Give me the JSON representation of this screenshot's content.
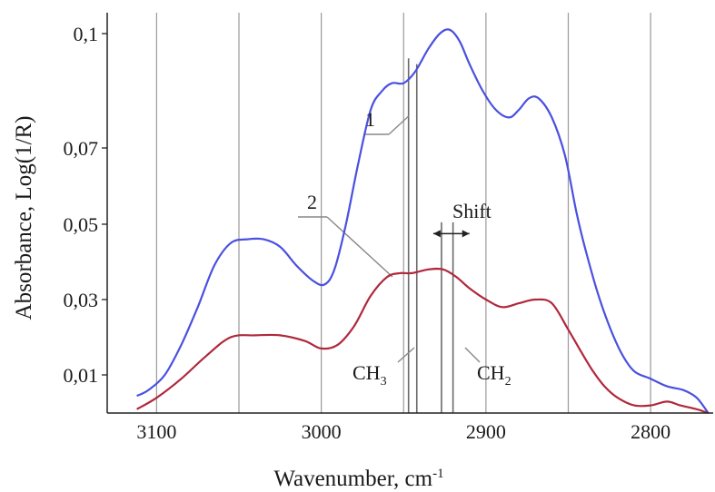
{
  "chart_data": {
    "type": "line",
    "title": "",
    "xlabel": "Wavenumber, cm",
    "xlabel_superscript": "-1",
    "ylabel": "Absorbance, Log(1/R)",
    "x_reversed": true,
    "xlim": [
      3130,
      2762
    ],
    "ylim": [
      0.0,
      0.105
    ],
    "x_ticks": [
      3100,
      3000,
      2900,
      2800
    ],
    "y_ticks": [
      0.01,
      0.03,
      0.05,
      0.07,
      0.1
    ],
    "y_tick_labels": [
      "0,01",
      "0,03",
      "0,05",
      "0,07",
      "0,1"
    ],
    "x_gridlines": [
      3100,
      3050,
      3000,
      2950,
      2900,
      2850,
      2800
    ],
    "grid": "vertical lines only",
    "colors": {
      "series1": "#4a50e0",
      "series2": "#b0283c",
      "grid": "#9a9a9a",
      "axis": "#222222",
      "annotation": "#888888"
    },
    "series": [
      {
        "name": "1",
        "x": [
          3112,
          3105,
          3095,
          3085,
          3075,
          3065,
          3055,
          3045,
          3035,
          3025,
          3015,
          3005,
          2998,
          2992,
          2985,
          2978,
          2970,
          2963,
          2957,
          2950,
          2943,
          2935,
          2928,
          2922,
          2916,
          2910,
          2902,
          2894,
          2886,
          2880,
          2874,
          2868,
          2860,
          2852,
          2845,
          2840,
          2833,
          2826,
          2818,
          2810,
          2800,
          2790,
          2780,
          2772,
          2765
        ],
        "y": [
          0.0045,
          0.006,
          0.01,
          0.018,
          0.028,
          0.039,
          0.045,
          0.046,
          0.046,
          0.044,
          0.039,
          0.035,
          0.034,
          0.038,
          0.05,
          0.065,
          0.08,
          0.085,
          0.087,
          0.087,
          0.09,
          0.096,
          0.1,
          0.101,
          0.098,
          0.092,
          0.085,
          0.08,
          0.078,
          0.08,
          0.083,
          0.083,
          0.078,
          0.068,
          0.053,
          0.044,
          0.033,
          0.024,
          0.016,
          0.011,
          0.009,
          0.007,
          0.006,
          0.004,
          0.0
        ]
      },
      {
        "name": "2",
        "x": [
          3112,
          3100,
          3085,
          3070,
          3055,
          3040,
          3025,
          3010,
          3000,
          2990,
          2980,
          2970,
          2960,
          2952,
          2945,
          2935,
          2926,
          2918,
          2910,
          2900,
          2890,
          2880,
          2870,
          2860,
          2850,
          2842,
          2835,
          2828,
          2820,
          2810,
          2800,
          2790,
          2782,
          2772,
          2765
        ],
        "y": [
          0.001,
          0.004,
          0.009,
          0.015,
          0.02,
          0.0205,
          0.0205,
          0.019,
          0.017,
          0.018,
          0.023,
          0.031,
          0.036,
          0.037,
          0.037,
          0.038,
          0.038,
          0.036,
          0.033,
          0.03,
          0.028,
          0.029,
          0.03,
          0.029,
          0.022,
          0.016,
          0.011,
          0.007,
          0.004,
          0.002,
          0.002,
          0.003,
          0.002,
          0.001,
          0.0
        ]
      }
    ],
    "marker_lines": [
      {
        "x": 2947,
        "y_top": 0.0935,
        "y_bottom": 0.0
      },
      {
        "x": 2942,
        "y_top": 0.092,
        "y_bottom": 0.0
      },
      {
        "x": 2927,
        "y_top": 0.0505,
        "y_bottom": 0.0
      },
      {
        "x": 2920,
        "y_top": 0.0505,
        "y_bottom": 0.0
      }
    ],
    "annotations": {
      "label1": {
        "text": "1",
        "x": 2980,
        "y": 0.0775
      },
      "label2": {
        "text": "2",
        "x": 3040,
        "y": 0.0535
      },
      "shift": {
        "text": "Shift",
        "x": 2903,
        "y": 0.051,
        "arrow_from": 2932,
        "arrow_to": 2910,
        "arrow_y": 0.0475
      },
      "ch3": {
        "text": "CH",
        "sub": "3",
        "x": 2975,
        "y": 0.0075
      },
      "ch2": {
        "text": "CH",
        "sub": "2",
        "x": 2903,
        "y": 0.0075
      }
    }
  }
}
